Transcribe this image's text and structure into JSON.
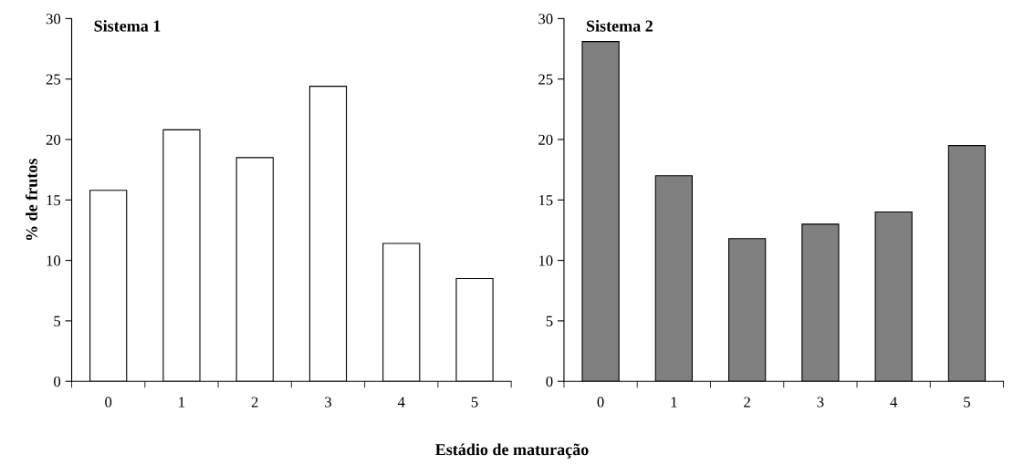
{
  "chart_data": [
    {
      "type": "bar",
      "title": "Sistema 1",
      "ylabel": "% de frutos",
      "xlabel": "Estádio de maturação",
      "categories": [
        "0",
        "1",
        "2",
        "3",
        "4",
        "5"
      ],
      "series": [
        {
          "color": "#ffffff",
          "values": [
            15.8,
            20.8,
            18.5,
            24.4,
            11.4,
            8.5
          ]
        }
      ],
      "ylim": [
        0,
        30
      ],
      "yticks": [
        0,
        5,
        10,
        15,
        20,
        25,
        30
      ],
      "grid": false,
      "legend": false
    },
    {
      "type": "bar",
      "title": "Sistema 2",
      "categories": [
        "0",
        "1",
        "2",
        "3",
        "4",
        "5"
      ],
      "series": [
        {
          "color": "#808080",
          "values": [
            28.1,
            17.0,
            11.8,
            13.0,
            14.0,
            19.5
          ]
        }
      ],
      "ylim": [
        0,
        30
      ],
      "yticks": [
        0,
        5,
        10,
        15,
        20,
        25,
        30
      ],
      "grid": false,
      "legend": false
    }
  ]
}
